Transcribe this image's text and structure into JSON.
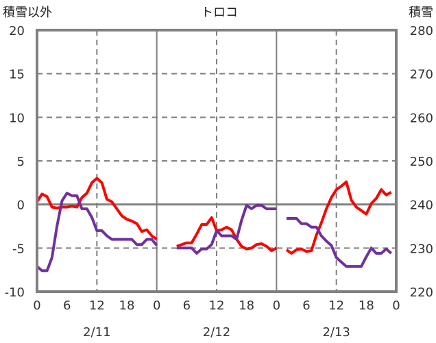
{
  "chart_data": {
    "type": "line",
    "title": "トロコ",
    "ylabel_left": "積雪以外",
    "ylabel_right": "積雪",
    "ylim_left": [
      -10,
      20
    ],
    "ylim_right": [
      220,
      280
    ],
    "yticks_left": [
      "20",
      "15",
      "10",
      "5",
      "0",
      "-5",
      "-10"
    ],
    "yticks_right": [
      "280",
      "270",
      "260",
      "250",
      "240",
      "230",
      "220"
    ],
    "xticks_hours": [
      "0",
      "6",
      "12",
      "18",
      "0",
      "6",
      "12",
      "18",
      "0",
      "6",
      "12",
      "18",
      "0"
    ],
    "dates": [
      "2/11",
      "2/12",
      "2/13"
    ],
    "grid": true,
    "series": [
      {
        "name": "積雪以外",
        "axis": "left",
        "color": "#ff0000",
        "panels": [
          [
            0.3,
            1.2,
            0.9,
            -0.3,
            -0.4,
            -0.3,
            -0.3,
            -0.2,
            -0.3,
            0.8,
            1.3,
            2.5,
            3.0,
            2.5,
            0.6,
            0.3,
            -0.5,
            -1.3,
            -1.7,
            -1.9,
            -2.2,
            -3.1,
            -2.9,
            -3.6,
            -4.0
          ],
          [
            null,
            null,
            null,
            null,
            -4.8,
            -4.6,
            -4.4,
            -4.4,
            -3.4,
            -2.3,
            -2.3,
            -1.5,
            -3.0,
            -2.9,
            -2.6,
            -2.9,
            -4.0,
            -4.8,
            -5.1,
            -5.0,
            -4.6,
            -4.5,
            -4.8,
            -5.3,
            -5.0
          ],
          [
            null,
            null,
            -5.2,
            -5.6,
            -5.2,
            -5.1,
            -5.4,
            -5.3,
            -3.5,
            -2.1,
            -0.5,
            0.8,
            1.7,
            2.1,
            2.6,
            0.5,
            -0.3,
            -0.7,
            -1.1,
            0.1,
            0.7,
            1.7,
            1.1,
            1.4,
            null
          ]
        ]
      },
      {
        "name": "積雪",
        "axis": "right",
        "color": "#7030a0",
        "panels": [
          [
            225.8,
            224.8,
            224.8,
            227.8,
            235,
            240.8,
            242.6,
            242,
            242,
            239,
            239,
            237,
            234,
            234,
            232.8,
            232,
            232,
            232,
            232,
            232,
            230.8,
            230.8,
            232,
            232,
            230.6
          ],
          [
            null,
            null,
            null,
            null,
            230,
            230,
            230,
            230,
            228.8,
            229.8,
            229.8,
            230.8,
            234,
            232.8,
            232.8,
            232.8,
            232,
            236.4,
            239.8,
            239,
            239.8,
            239.8,
            239,
            239,
            239
          ],
          [
            null,
            null,
            236.8,
            236.8,
            236.8,
            235.6,
            235.6,
            234.8,
            234.8,
            232.8,
            231.6,
            230.6,
            227.8,
            226.8,
            225.8,
            225.8,
            225.8,
            225.8,
            228,
            230,
            228.8,
            228.8,
            229.8,
            228.8,
            null
          ]
        ]
      }
    ]
  }
}
